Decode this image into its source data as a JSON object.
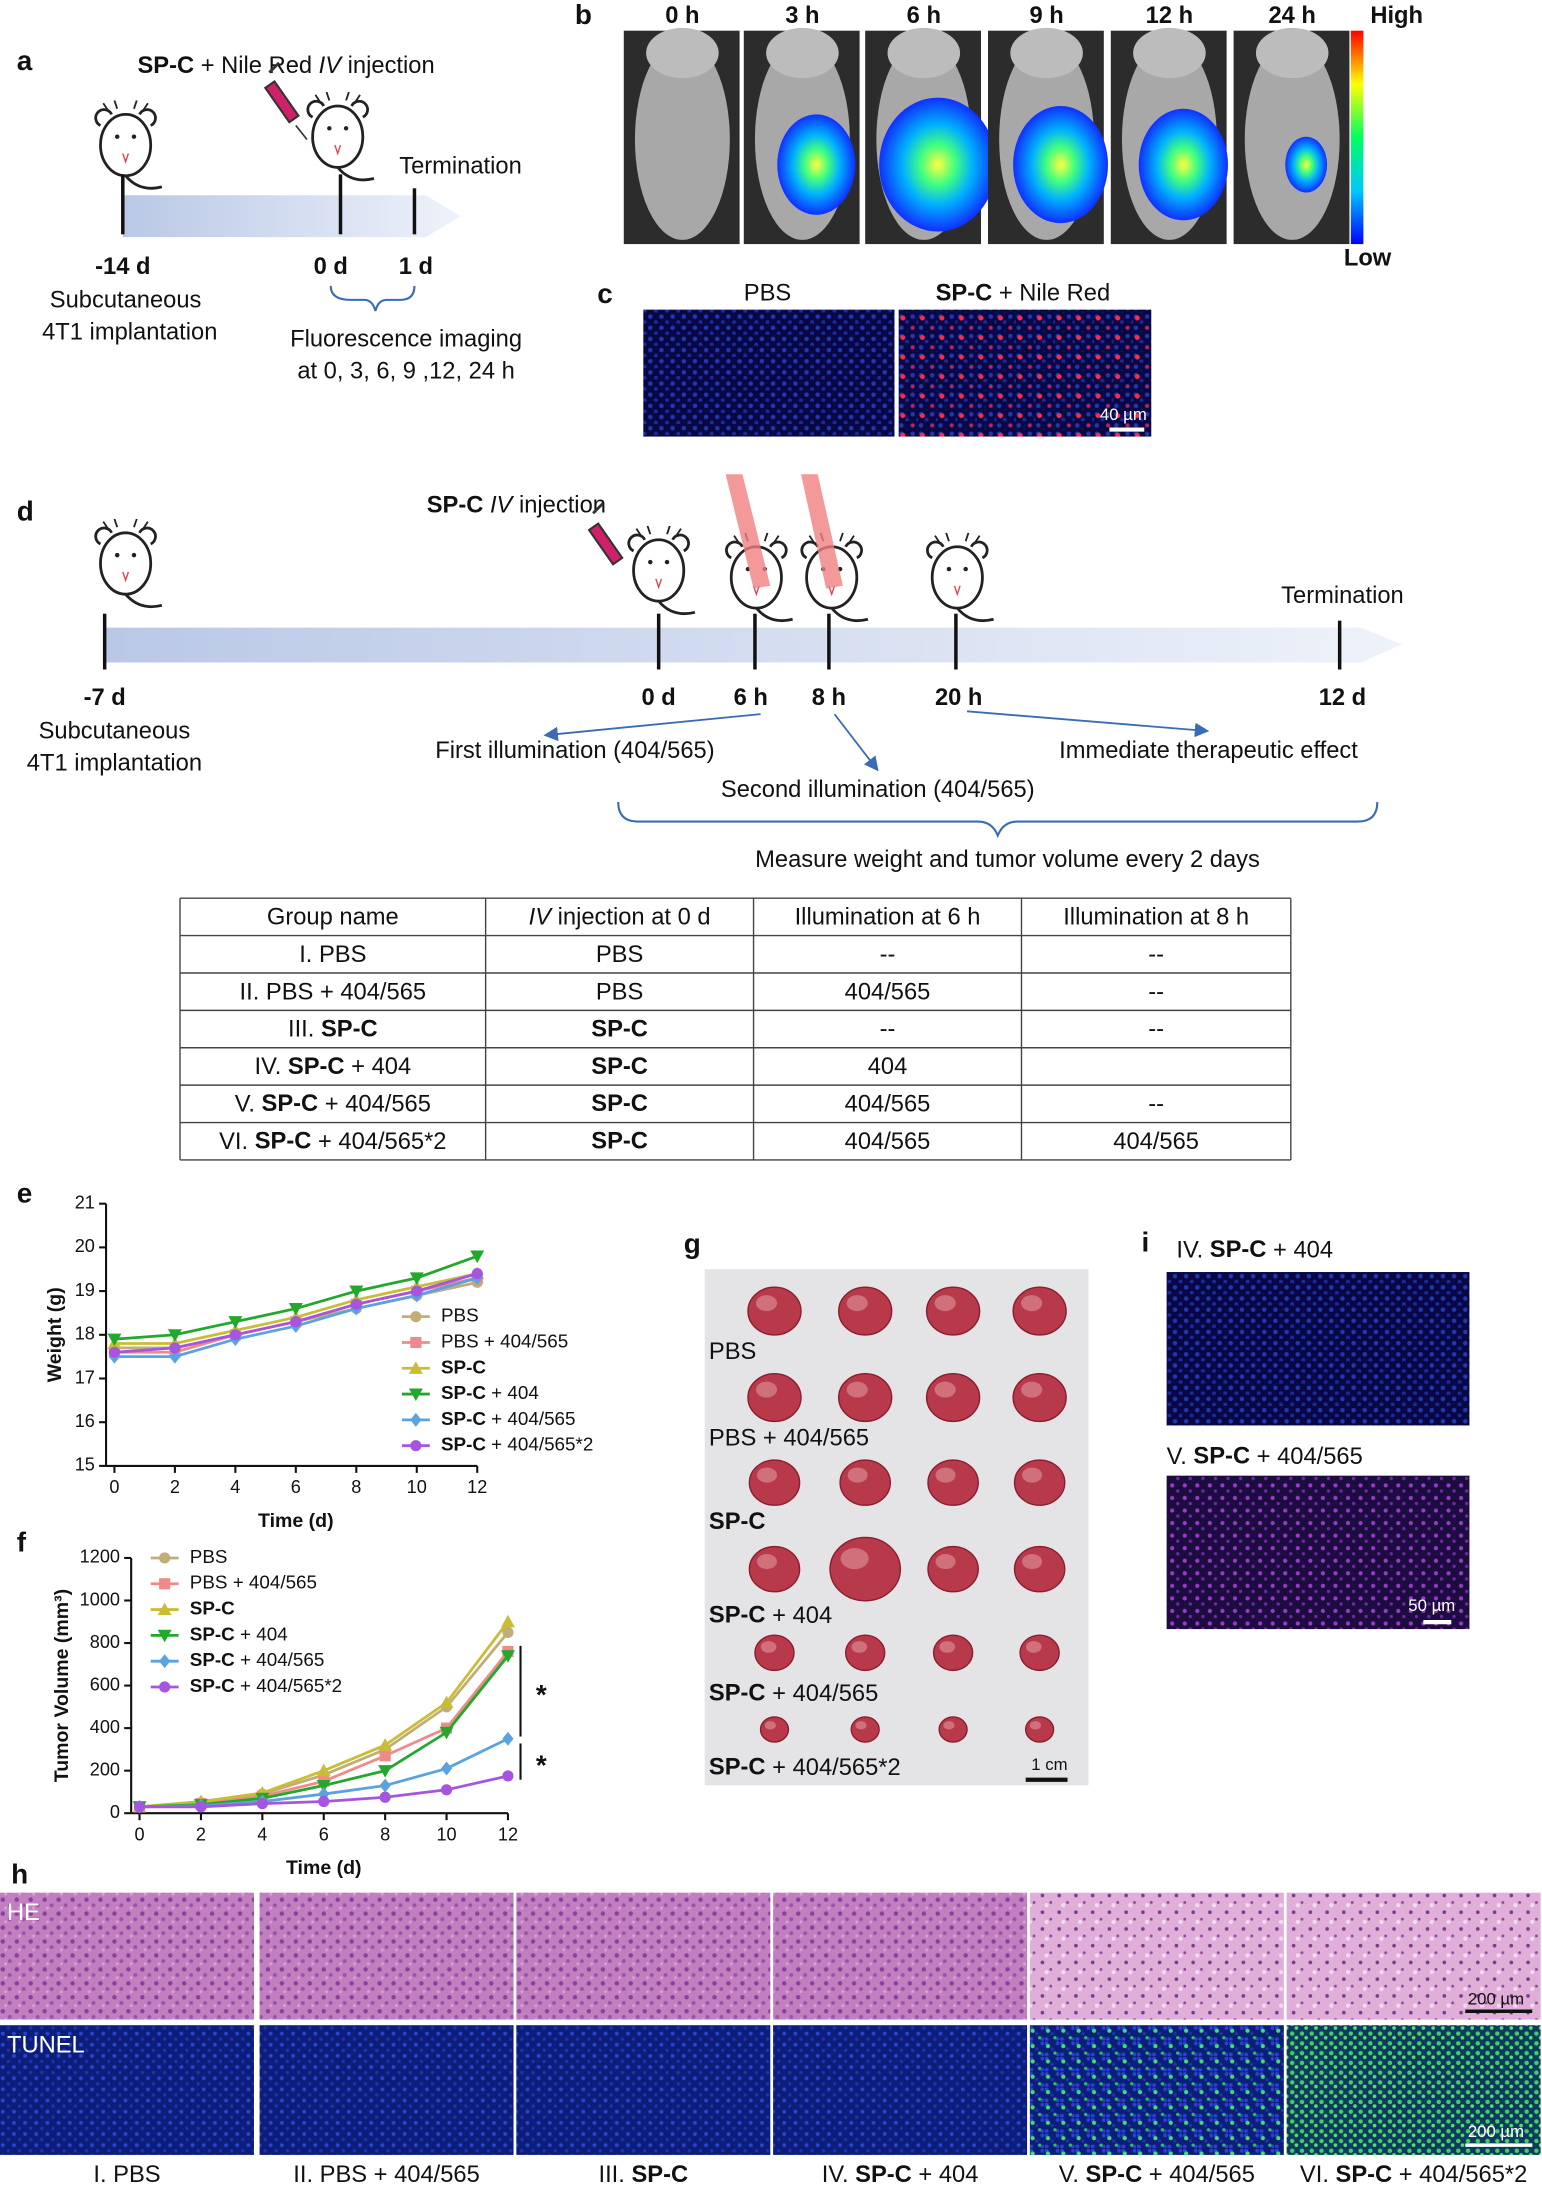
{
  "panel_labels": [
    "a",
    "b",
    "c",
    "d",
    "e",
    "f",
    "g",
    "h",
    "i"
  ],
  "panel_a": {
    "title": "SP-C + Nile Red IV injection",
    "termination": "Termination",
    "ticks": [
      "-14 d",
      "0 d",
      "1 d"
    ],
    "implant": [
      "Subcutaneous",
      "4T1 implantation"
    ],
    "imaging": [
      "Fluorescence imaging",
      "at 0, 3, 6, 9 ,12, 24 h"
    ]
  },
  "panel_b": {
    "times": [
      "0 h",
      "3 h",
      "6 h",
      "9 h",
      "12 h",
      "24 h"
    ],
    "high": "High",
    "low": "Low"
  },
  "panel_c": {
    "labels": [
      "PBS",
      "SP-C + Nile Red"
    ],
    "scale": "40 µm"
  },
  "panel_d": {
    "title": "SP-C IV injection",
    "ticks": [
      "-7 d",
      "0 d",
      "6 h",
      "8 h",
      "20 h",
      "12 d"
    ],
    "termination": "Termination",
    "implant": [
      "Subcutaneous",
      "4T1 implantation"
    ],
    "first": "First illumination (404/565)",
    "second": "Second illumination (404/565)",
    "effect": "Immediate therapeutic effect",
    "measure": "Measure weight and tumor volume every 2 days"
  },
  "table": {
    "header": [
      "Group name",
      "IV injection at 0 d",
      "Illumination at 6 h",
      "Illumination at 8 h"
    ],
    "rows": [
      [
        "I. PBS",
        "PBS",
        "--",
        "--"
      ],
      [
        "II. PBS + 404/565",
        "PBS",
        "404/565",
        "--"
      ],
      [
        "III. SP-C",
        "SP-C",
        "--",
        "--"
      ],
      [
        "IV. SP-C + 404",
        "SP-C",
        "404",
        null
      ],
      [
        "V. SP-C + 404/565",
        "SP-C",
        "404/565",
        "--"
      ],
      [
        "VI. SP-C + 404/565*2",
        "SP-C",
        "404/565",
        "404/565"
      ]
    ]
  },
  "chart_data": [
    {
      "type": "line",
      "x_label": "Time (d)",
      "y_label": "Weight (g)",
      "x": [
        0,
        2,
        4,
        6,
        8,
        10,
        12
      ],
      "xlim": [
        0,
        12
      ],
      "xticks": [
        0,
        2,
        4,
        6,
        8,
        10,
        12
      ],
      "ylim": [
        15,
        21
      ],
      "yticks": [
        15,
        16,
        17,
        18,
        19,
        20,
        21
      ],
      "series": [
        {
          "name": "PBS",
          "color": "#c2ad78",
          "marker": "circle",
          "values": [
            17.7,
            17.7,
            18.0,
            18.3,
            18.6,
            18.9,
            19.2
          ]
        },
        {
          "name": "PBS + 404/565",
          "color": "#f08a8a",
          "marker": "square",
          "values": [
            17.6,
            17.6,
            18.0,
            18.3,
            18.7,
            19.0,
            19.3
          ]
        },
        {
          "name": "SP-C",
          "color": "#c9bd35",
          "marker": "triangle-up",
          "values": [
            17.8,
            17.8,
            18.1,
            18.4,
            18.8,
            19.1,
            19.4
          ]
        },
        {
          "name": "SP-C + 404",
          "color": "#22a82a",
          "marker": "triangle-down",
          "values": [
            17.9,
            18.0,
            18.3,
            18.6,
            19.0,
            19.3,
            19.8
          ]
        },
        {
          "name": "SP-C + 404/565",
          "color": "#5aa2e0",
          "marker": "diamond",
          "values": [
            17.5,
            17.5,
            17.9,
            18.2,
            18.6,
            18.9,
            19.3
          ]
        },
        {
          "name": "SP-C + 404/565*2",
          "color": "#a555e0",
          "marker": "circle",
          "values": [
            17.6,
            17.7,
            18.0,
            18.3,
            18.7,
            19.0,
            19.4
          ]
        }
      ]
    },
    {
      "type": "line",
      "x_label": "Time (d)",
      "y_label": "Tumor Volume (mm³)",
      "x": [
        0,
        2,
        4,
        6,
        8,
        10,
        12
      ],
      "xlim": [
        0,
        12
      ],
      "xticks": [
        0,
        2,
        4,
        6,
        8,
        10,
        12
      ],
      "ylim": [
        0,
        1200
      ],
      "yticks": [
        0,
        200,
        400,
        600,
        800,
        1000,
        1200
      ],
      "annotations": [
        "*",
        "*"
      ],
      "series": [
        {
          "name": "PBS",
          "color": "#c2ad78",
          "marker": "circle",
          "values": [
            30,
            50,
            90,
            180,
            300,
            500,
            850
          ]
        },
        {
          "name": "PBS + 404/565",
          "color": "#f08a8a",
          "marker": "square",
          "values": [
            30,
            45,
            80,
            150,
            270,
            400,
            760
          ]
        },
        {
          "name": "SP-C",
          "color": "#c9bd35",
          "marker": "triangle-up",
          "values": [
            30,
            55,
            95,
            200,
            320,
            520,
            900
          ]
        },
        {
          "name": "SP-C + 404",
          "color": "#22a82a",
          "marker": "triangle-down",
          "values": [
            30,
            40,
            70,
            130,
            200,
            380,
            740
          ]
        },
        {
          "name": "SP-C + 404/565",
          "color": "#5aa2e0",
          "marker": "diamond",
          "values": [
            30,
            35,
            55,
            90,
            130,
            210,
            350
          ]
        },
        {
          "name": "SP-C + 404/565*2",
          "color": "#a555e0",
          "marker": "circle",
          "values": [
            30,
            30,
            45,
            55,
            75,
            110,
            175
          ]
        }
      ]
    }
  ],
  "panel_g": {
    "labels": [
      "PBS",
      "PBS + 404/565",
      "SP-C",
      "SP-C + 404",
      "SP-C + 404/565",
      "SP-C + 404/565*2"
    ],
    "scale": "1 cm"
  },
  "panel_h": {
    "rows": [
      "HE",
      "TUNEL"
    ],
    "scale": [
      "200 µm",
      "200 µm"
    ],
    "groups": [
      "I. PBS",
      "II. PBS + 404/565",
      "III. SP-C",
      "IV. SP-C + 404",
      "V. SP-C + 404/565",
      "VI. SP-C + 404/565*2"
    ]
  },
  "panel_i": {
    "labels": [
      "IV. SP-C + 404",
      "V. SP-C + 404/565"
    ],
    "scale": "50 µm"
  }
}
